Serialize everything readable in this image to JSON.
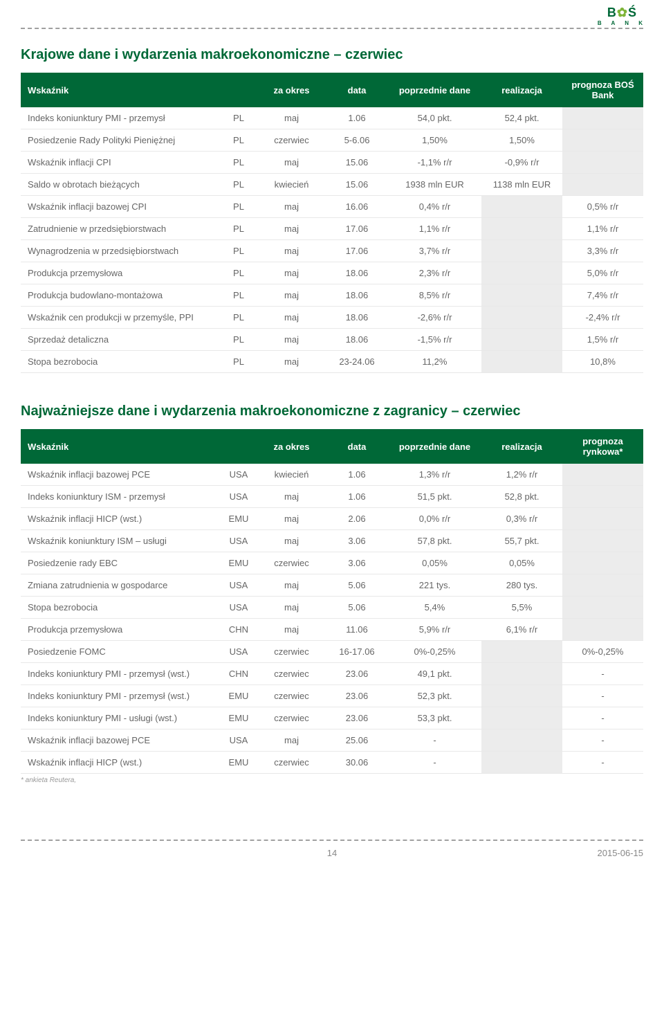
{
  "logo": {
    "b": "B",
    "clover": "✿",
    "s": "Ś",
    "bank": "B A N K"
  },
  "section1": {
    "title": "Krajowe dane i wydarzenia makroekonomiczne – czerwiec",
    "headers": [
      "Wskaźnik",
      "",
      "za okres",
      "data",
      "poprzednie dane",
      "realizacja",
      "prognoza BOŚ Bank"
    ],
    "rows": [
      {
        "c": [
          "Indeks koniunktury PMI - przemysł",
          "PL",
          "maj",
          "1.06",
          "54,0 pkt.",
          "52,4 pkt.",
          ""
        ],
        "shadeLast": true
      },
      {
        "c": [
          "Posiedzenie Rady Polityki Pieniężnej",
          "PL",
          "czerwiec",
          "5-6.06",
          "1,50%",
          "1,50%",
          ""
        ],
        "shadeLast": true
      },
      {
        "c": [
          "Wskaźnik inflacji CPI",
          "PL",
          "maj",
          "15.06",
          "-1,1% r/r",
          "-0,9% r/r",
          ""
        ],
        "shadeLast": true
      },
      {
        "c": [
          "Saldo w obrotach bieżących",
          "PL",
          "kwiecień",
          "15.06",
          "1938 mln EUR",
          "1138 mln EUR",
          ""
        ],
        "shadeLast": true
      },
      {
        "c": [
          "Wskaźnik inflacji bazowej CPI",
          "PL",
          "maj",
          "16.06",
          "0,4% r/r",
          "",
          "0,5% r/r"
        ],
        "shade56": true
      },
      {
        "c": [
          "Zatrudnienie w przedsiębiorstwach",
          "PL",
          "maj",
          "17.06",
          "1,1% r/r",
          "",
          "1,1% r/r"
        ],
        "shade56": true
      },
      {
        "c": [
          "Wynagrodzenia w przedsiębiorstwach",
          "PL",
          "maj",
          "17.06",
          "3,7% r/r",
          "",
          "3,3% r/r"
        ],
        "shade56": true
      },
      {
        "c": [
          "Produkcja przemysłowa",
          "PL",
          "maj",
          "18.06",
          "2,3% r/r",
          "",
          "5,0% r/r"
        ],
        "shade56": true
      },
      {
        "c": [
          "Produkcja budowlano-montażowa",
          "PL",
          "maj",
          "18.06",
          "8,5% r/r",
          "",
          "7,4% r/r"
        ],
        "shade56": true
      },
      {
        "c": [
          "Wskaźnik cen produkcji w przemyśle, PPI",
          "PL",
          "maj",
          "18.06",
          "-2,6% r/r",
          "",
          "-2,4% r/r"
        ],
        "shade56": true
      },
      {
        "c": [
          "Sprzedaż detaliczna",
          "PL",
          "maj",
          "18.06",
          "-1,5% r/r",
          "",
          "1,5% r/r"
        ],
        "shade56": true
      },
      {
        "c": [
          "Stopa bezrobocia",
          "PL",
          "maj",
          "23-24.06",
          "11,2%",
          "",
          "10,8%"
        ],
        "shade56": true
      }
    ]
  },
  "section2": {
    "title": "Najważniejsze dane i wydarzenia makroekonomiczne z zagranicy – czerwiec",
    "headers": [
      "Wskaźnik",
      "",
      "za okres",
      "data",
      "poprzednie dane",
      "realizacja",
      "prognoza rynkowa*"
    ],
    "rows": [
      {
        "c": [
          "Wskaźnik inflacji bazowej PCE",
          "USA",
          "kwiecień",
          "1.06",
          "1,3% r/r",
          "1,2% r/r",
          ""
        ],
        "shadeLast": true
      },
      {
        "c": [
          "Indeks koniunktury ISM - przemysł",
          "USA",
          "maj",
          "1.06",
          "51,5 pkt.",
          "52,8 pkt.",
          ""
        ],
        "shadeLast": true
      },
      {
        "c": [
          "Wskaźnik inflacji HICP (wst.)",
          "EMU",
          "maj",
          "2.06",
          "0,0% r/r",
          "0,3% r/r",
          ""
        ],
        "shadeLast": true
      },
      {
        "c": [
          "Wskaźnik koniunktury ISM – usługi",
          "USA",
          "maj",
          "3.06",
          "57,8 pkt.",
          "55,7 pkt.",
          ""
        ],
        "shadeLast": true
      },
      {
        "c": [
          "Posiedzenie rady EBC",
          "EMU",
          "czerwiec",
          "3.06",
          "0,05%",
          "0,05%",
          ""
        ],
        "shadeLast": true
      },
      {
        "c": [
          "Zmiana zatrudnienia w gospodarce",
          "USA",
          "maj",
          "5.06",
          "221 tys.",
          "280 tys.",
          ""
        ],
        "shadeLast": true
      },
      {
        "c": [
          "Stopa bezrobocia",
          "USA",
          "maj",
          "5.06",
          "5,4%",
          "5,5%",
          ""
        ],
        "shadeLast": true
      },
      {
        "c": [
          "Produkcja przemysłowa",
          "CHN",
          "maj",
          "11.06",
          "5,9% r/r",
          "6,1% r/r",
          ""
        ],
        "shadeLast": true
      },
      {
        "c": [
          "Posiedzenie FOMC",
          "USA",
          "czerwiec",
          "16-17.06",
          "0%-0,25%",
          "",
          "0%-0,25%"
        ],
        "shade56": true
      },
      {
        "c": [
          "Indeks koniunktury PMI - przemysł (wst.)",
          "CHN",
          "czerwiec",
          "23.06",
          "49,1 pkt.",
          "",
          "-"
        ],
        "shade56": true
      },
      {
        "c": [
          "Indeks koniunktury PMI - przemysł (wst.)",
          "EMU",
          "czerwiec",
          "23.06",
          "52,3 pkt.",
          "",
          "-"
        ],
        "shade56": true
      },
      {
        "c": [
          "Indeks koniunktury PMI - usługi (wst.)",
          "EMU",
          "czerwiec",
          "23.06",
          "53,3 pkt.",
          "",
          "-"
        ],
        "shade56": true
      },
      {
        "c": [
          "Wskaźnik inflacji bazowej PCE",
          "USA",
          "maj",
          "25.06",
          "-",
          "",
          "-"
        ],
        "shade56": true
      },
      {
        "c": [
          "Wskaźnik inflacji HICP (wst.)",
          "EMU",
          "czerwiec",
          "30.06",
          "-",
          "",
          "-"
        ],
        "shade56": true
      }
    ],
    "footnote": "* ankieta Reutera,"
  },
  "footer": {
    "page": "14",
    "date": "2015-06-15"
  },
  "colwidths": [
    "32%",
    "6%",
    "11%",
    "10%",
    "15%",
    "13%",
    "13%"
  ]
}
